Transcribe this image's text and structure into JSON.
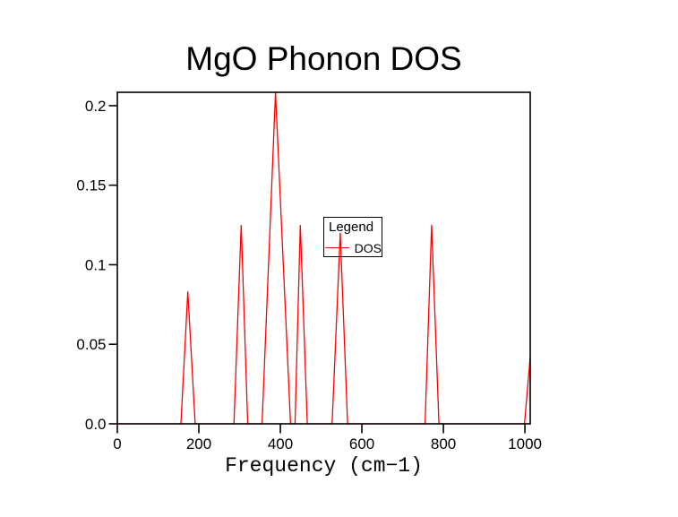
{
  "figure": {
    "background": "#ffffff"
  },
  "chart_data": {
    "type": "line",
    "title": "MgO Phonon DOS",
    "xlabel": "Frequency (cm−1)",
    "ylabel": "",
    "xlim": [
      0,
      1013
    ],
    "ylim": [
      0,
      0.2084
    ],
    "x_ticks": [
      0,
      200,
      400,
      600,
      800,
      1000
    ],
    "x_tick_labels": [
      "0",
      "200",
      "400",
      "600",
      "800",
      "1000"
    ],
    "y_ticks": [
      0,
      0.05,
      0.1,
      0.15,
      0.2
    ],
    "y_tick_labels": [
      "0.0",
      "0.05",
      "0.1",
      "0.15",
      "0.2"
    ],
    "grid": false,
    "axis_color": "#000000",
    "legend": {
      "title": "Legend",
      "position": "center",
      "entries": [
        {
          "label": "DOS",
          "color": "#ff0000"
        }
      ]
    },
    "series": [
      {
        "name": "DOS",
        "color": "#ff0000",
        "points": [
          [
            0,
            0
          ],
          [
            156,
            0
          ],
          [
            173,
            0.0833
          ],
          [
            191,
            0
          ],
          [
            286,
            0
          ],
          [
            304,
            0.125
          ],
          [
            320,
            0
          ],
          [
            355,
            0
          ],
          [
            388,
            0.2083
          ],
          [
            425,
            0
          ],
          [
            436,
            0
          ],
          [
            449,
            0.125
          ],
          [
            466,
            0
          ],
          [
            527,
            0
          ],
          [
            547,
            0.12
          ],
          [
            565,
            0
          ],
          [
            755,
            0
          ],
          [
            771,
            0.125
          ],
          [
            789,
            0
          ],
          [
            999,
            0
          ],
          [
            1013,
            0.042
          ]
        ]
      }
    ]
  }
}
